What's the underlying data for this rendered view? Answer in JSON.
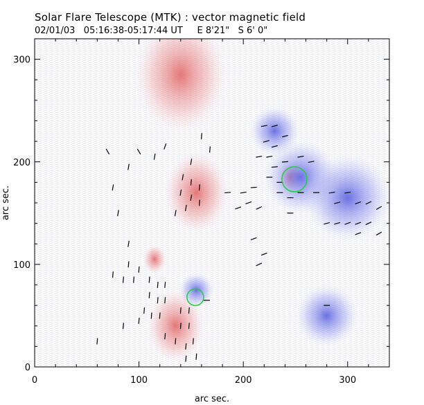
{
  "header": {
    "title": "Solar Flare Telescope (MTK) : vector magnetic field",
    "date": "02/01/03",
    "time_range": "05:16:38-05:17:44 UT",
    "position": "E 8'21\"   S 6' 0\""
  },
  "chart_data": {
    "type": "vector-magnetogram",
    "xlabel": "arc sec.",
    "ylabel": "arc sec.",
    "xlim": [
      0,
      340
    ],
    "ylim": [
      0,
      320
    ],
    "xticks": [
      0,
      100,
      200,
      300
    ],
    "yticks": [
      0,
      100,
      200,
      300
    ],
    "colors": {
      "positive": "#e88080",
      "negative": "#7f86e8",
      "vector": "#000000",
      "contour": "#22cc44"
    },
    "positive_regions": [
      {
        "x": 155,
        "y": 170,
        "r": 28
      },
      {
        "x": 115,
        "y": 105,
        "r": 10
      },
      {
        "x": 140,
        "y": 285,
        "r": 40
      },
      {
        "x": 245,
        "y": 185,
        "r": 10
      },
      {
        "x": 135,
        "y": 40,
        "r": 25
      }
    ],
    "negative_regions": [
      {
        "x": 255,
        "y": 185,
        "r": 30
      },
      {
        "x": 230,
        "y": 230,
        "r": 20
      },
      {
        "x": 300,
        "y": 165,
        "r": 35
      },
      {
        "x": 155,
        "y": 75,
        "r": 14
      },
      {
        "x": 280,
        "y": 50,
        "r": 25
      }
    ],
    "contours": [
      {
        "x": 249,
        "y": 183,
        "r": 12
      },
      {
        "x": 154,
        "y": 68,
        "r": 8
      }
    ],
    "vectors": [
      {
        "x": 160,
        "y": 225,
        "angle": 95
      },
      {
        "x": 168,
        "y": 212,
        "angle": 95
      },
      {
        "x": 150,
        "y": 200,
        "angle": 100
      },
      {
        "x": 142,
        "y": 185,
        "angle": 100
      },
      {
        "x": 150,
        "y": 180,
        "angle": 95
      },
      {
        "x": 158,
        "y": 175,
        "angle": 95
      },
      {
        "x": 150,
        "y": 165,
        "angle": 100
      },
      {
        "x": 145,
        "y": 155,
        "angle": 100
      },
      {
        "x": 158,
        "y": 160,
        "angle": 95
      },
      {
        "x": 140,
        "y": 170,
        "angle": 100
      },
      {
        "x": 135,
        "y": 150,
        "angle": 100
      },
      {
        "x": 125,
        "y": 215,
        "angle": 110
      },
      {
        "x": 115,
        "y": 205,
        "angle": 100
      },
      {
        "x": 100,
        "y": 210,
        "angle": 60
      },
      {
        "x": 90,
        "y": 195,
        "angle": 100
      },
      {
        "x": 70,
        "y": 210,
        "angle": 60
      },
      {
        "x": 75,
        "y": 175,
        "angle": 100
      },
      {
        "x": 80,
        "y": 150,
        "angle": 100
      },
      {
        "x": 90,
        "y": 120,
        "angle": 100
      },
      {
        "x": 90,
        "y": 100,
        "angle": 95
      },
      {
        "x": 85,
        "y": 85,
        "angle": 95
      },
      {
        "x": 75,
        "y": 90,
        "angle": 95
      },
      {
        "x": 95,
        "y": 85,
        "angle": 95
      },
      {
        "x": 100,
        "y": 95,
        "angle": 95
      },
      {
        "x": 110,
        "y": 85,
        "angle": 95
      },
      {
        "x": 118,
        "y": 80,
        "angle": 95
      },
      {
        "x": 125,
        "y": 80,
        "angle": 95
      },
      {
        "x": 110,
        "y": 70,
        "angle": 95
      },
      {
        "x": 118,
        "y": 65,
        "angle": 95
      },
      {
        "x": 125,
        "y": 65,
        "angle": 95
      },
      {
        "x": 105,
        "y": 55,
        "angle": 95
      },
      {
        "x": 112,
        "y": 50,
        "angle": 95
      },
      {
        "x": 120,
        "y": 50,
        "angle": 95
      },
      {
        "x": 100,
        "y": 45,
        "angle": 95
      },
      {
        "x": 140,
        "y": 55,
        "angle": 95
      },
      {
        "x": 148,
        "y": 55,
        "angle": 95
      },
      {
        "x": 140,
        "y": 40,
        "angle": 95
      },
      {
        "x": 148,
        "y": 40,
        "angle": 95
      },
      {
        "x": 135,
        "y": 25,
        "angle": 95
      },
      {
        "x": 145,
        "y": 20,
        "angle": 95
      },
      {
        "x": 152,
        "y": 25,
        "angle": 95
      },
      {
        "x": 145,
        "y": 8,
        "angle": 95
      },
      {
        "x": 155,
        "y": 10,
        "angle": 95
      },
      {
        "x": 125,
        "y": 30,
        "angle": 95
      },
      {
        "x": 60,
        "y": 25,
        "angle": 95
      },
      {
        "x": 85,
        "y": 40,
        "angle": 95
      },
      {
        "x": 165,
        "y": 65,
        "angle": 0
      },
      {
        "x": 220,
        "y": 235,
        "angle": -10
      },
      {
        "x": 230,
        "y": 235,
        "angle": -15
      },
      {
        "x": 240,
        "y": 225,
        "angle": -15
      },
      {
        "x": 222,
        "y": 220,
        "angle": -15
      },
      {
        "x": 230,
        "y": 215,
        "angle": -15
      },
      {
        "x": 215,
        "y": 205,
        "angle": -10
      },
      {
        "x": 225,
        "y": 205,
        "angle": -10
      },
      {
        "x": 240,
        "y": 200,
        "angle": -5
      },
      {
        "x": 255,
        "y": 205,
        "angle": -10
      },
      {
        "x": 265,
        "y": 200,
        "angle": -10
      },
      {
        "x": 230,
        "y": 195,
        "angle": -5
      },
      {
        "x": 225,
        "y": 185,
        "angle": 0
      },
      {
        "x": 210,
        "y": 175,
        "angle": -5
      },
      {
        "x": 200,
        "y": 170,
        "angle": -10
      },
      {
        "x": 185,
        "y": 170,
        "angle": -5
      },
      {
        "x": 205,
        "y": 160,
        "angle": -20
      },
      {
        "x": 215,
        "y": 155,
        "angle": -25
      },
      {
        "x": 195,
        "y": 155,
        "angle": -20
      },
      {
        "x": 235,
        "y": 170,
        "angle": 0
      },
      {
        "x": 255,
        "y": 170,
        "angle": 0
      },
      {
        "x": 270,
        "y": 170,
        "angle": 0
      },
      {
        "x": 285,
        "y": 170,
        "angle": -10
      },
      {
        "x": 300,
        "y": 170,
        "angle": -10
      },
      {
        "x": 310,
        "y": 160,
        "angle": -20
      },
      {
        "x": 320,
        "y": 160,
        "angle": -25
      },
      {
        "x": 330,
        "y": 155,
        "angle": -30
      },
      {
        "x": 290,
        "y": 160,
        "angle": -15
      },
      {
        "x": 300,
        "y": 140,
        "angle": -20
      },
      {
        "x": 310,
        "y": 140,
        "angle": -20
      },
      {
        "x": 320,
        "y": 140,
        "angle": -25
      },
      {
        "x": 330,
        "y": 130,
        "angle": -30
      },
      {
        "x": 310,
        "y": 130,
        "angle": -20
      },
      {
        "x": 280,
        "y": 140,
        "angle": -15
      },
      {
        "x": 290,
        "y": 140,
        "angle": -15
      },
      {
        "x": 210,
        "y": 125,
        "angle": -20
      },
      {
        "x": 220,
        "y": 110,
        "angle": -20
      },
      {
        "x": 215,
        "y": 100,
        "angle": -25
      },
      {
        "x": 245,
        "y": 150,
        "angle": 0
      },
      {
        "x": 235,
        "y": 180,
        "angle": 0
      },
      {
        "x": 245,
        "y": 165,
        "angle": 0
      },
      {
        "x": 280,
        "y": 60,
        "angle": 0
      }
    ]
  }
}
